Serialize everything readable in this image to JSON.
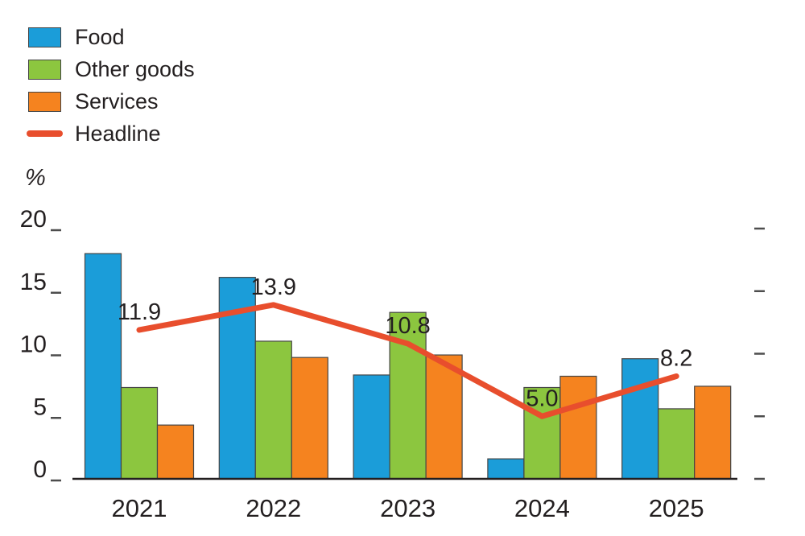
{
  "chart_data": {
    "type": "bar+line",
    "title": "",
    "ylabel": "%",
    "xlabel": "",
    "categories": [
      "2021",
      "2022",
      "2023",
      "2024",
      "2025"
    ],
    "series": [
      {
        "name": "Food",
        "color": "#1b9dd9",
        "values": [
          18.0,
          16.1,
          8.3,
          1.6,
          9.6
        ]
      },
      {
        "name": "Other goods",
        "color": "#8cc63f",
        "values": [
          7.3,
          11.0,
          13.3,
          7.3,
          5.6
        ]
      },
      {
        "name": "Services",
        "color": "#f5831f",
        "values": [
          4.3,
          9.7,
          9.9,
          8.2,
          7.4
        ]
      }
    ],
    "line": {
      "name": "Headline",
      "color": "#e84e2d",
      "values": [
        11.9,
        13.9,
        10.8,
        5.0,
        8.2
      ],
      "labels": [
        "11.9",
        "13.9",
        "10.8",
        "5.0",
        "8.2"
      ]
    },
    "yticks": [
      0,
      5,
      10,
      15,
      20
    ],
    "ylim": [
      0,
      20
    ],
    "grid": false,
    "legend_position": "top-left",
    "colors": {
      "text": "#231f20",
      "axis": "#231f20",
      "tick": "#4d4d4d",
      "bar_outline": "#454545"
    }
  }
}
